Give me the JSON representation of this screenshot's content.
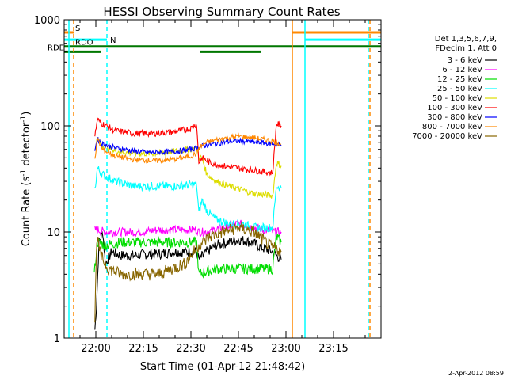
{
  "chart_data": {
    "type": "line",
    "title": "HESSI Observing Summary Count Rates",
    "xlabel": "Start Time (01-Apr-12 21:48:42)",
    "ylabel_main": "Count Rate (s",
    "ylabel_sup1": "-1",
    "ylabel_mid": " detector",
    "ylabel_sup2": "-1",
    "ylabel_end": ")",
    "yscale": "log",
    "xlim_minutes": [
      -10,
      90
    ],
    "ylim": [
      1,
      1000
    ],
    "x_ticks": [
      {
        "minute": 0,
        "label": "22:00"
      },
      {
        "minute": 15,
        "label": "22:15"
      },
      {
        "minute": 30,
        "label": "22:30"
      },
      {
        "minute": 45,
        "label": "22:45"
      },
      {
        "minute": 60,
        "label": "23:00"
      },
      {
        "minute": 75,
        "label": "23:15"
      }
    ],
    "y_ticks": [
      {
        "value": 1,
        "label": "1"
      },
      {
        "value": 10,
        "label": "10"
      },
      {
        "value": 100,
        "label": "100"
      },
      {
        "value": 1000,
        "label": "1000"
      }
    ],
    "legend_header": [
      "Det 1,3,5,6,7,9,",
      "FDecim 1, Att 0"
    ],
    "series": [
      {
        "name": "3 - 6 keV",
        "color": "#000000",
        "x": [
          -0.3,
          0.2,
          1.0,
          2.2,
          3.0,
          5.0,
          8,
          12,
          16,
          20,
          25,
          31.8,
          32.5,
          35,
          38,
          42,
          45,
          49,
          53,
          55.8,
          57,
          58.5
        ],
        "y": [
          1.2,
          2.0,
          8,
          10,
          5,
          6.5,
          6,
          6,
          6.2,
          6.2,
          6.5,
          6.5,
          5.5,
          6.5,
          7.5,
          8,
          8.5,
          8,
          7,
          6.5,
          6,
          5.5
        ]
      },
      {
        "name": "6 - 12 keV",
        "color": "#ff00ff",
        "x": [
          -0.3,
          0.5,
          3,
          8,
          14,
          20,
          26,
          31.8,
          32.5,
          35,
          40,
          45,
          50,
          55.8,
          57,
          58.5
        ],
        "y": [
          10.5,
          10.5,
          10,
          10,
          10,
          10.5,
          10.5,
          10.5,
          10,
          10,
          11,
          12,
          11,
          10,
          10,
          10
        ]
      },
      {
        "name": "12 - 25 keV",
        "color": "#00dd00",
        "x": [
          -0.5,
          0.5,
          3,
          8,
          14,
          20,
          26,
          31.8,
          32.5,
          38,
          44,
          50,
          55.8,
          57,
          58.5
        ],
        "y": [
          4,
          8,
          7.5,
          8,
          8,
          8,
          8,
          8,
          4,
          4.5,
          4.5,
          4.5,
          4.5,
          9,
          8
        ]
      },
      {
        "name": "25 - 50 keV",
        "color": "#00ffff",
        "x": [
          -0.3,
          0.5,
          2,
          6,
          12,
          18,
          24,
          31.8,
          32.5,
          33.5,
          35,
          38,
          42,
          46,
          50,
          55.8,
          57,
          58.5
        ],
        "y": [
          25,
          40,
          35,
          30,
          27,
          27,
          27,
          28,
          15,
          20,
          16,
          13,
          12,
          12,
          11,
          11,
          27,
          26
        ]
      },
      {
        "name": "50 - 100 keV",
        "color": "#dddd00",
        "x": [
          -0.3,
          0.5,
          2,
          6,
          12,
          18,
          24,
          30,
          31.8,
          32.5,
          33.5,
          35,
          38,
          42,
          46,
          50,
          55.8,
          57,
          58.5
        ],
        "y": [
          60,
          75,
          65,
          58,
          55,
          55,
          57,
          60,
          62,
          50,
          50,
          35,
          30,
          27,
          25,
          23,
          22,
          45,
          42
        ]
      },
      {
        "name": "100 - 300 keV",
        "color": "#ff0000",
        "x": [
          -0.3,
          0.5,
          2,
          6,
          12,
          18,
          24,
          30,
          31.8,
          32.5,
          33.5,
          36,
          40,
          45,
          50,
          55.8,
          57,
          58.5
        ],
        "y": [
          80,
          115,
          105,
          90,
          85,
          85,
          87,
          95,
          105,
          45,
          50,
          45,
          42,
          40,
          38,
          36,
          105,
          100
        ]
      },
      {
        "name": "300 - 800 keV",
        "color": "#0000ff",
        "x": [
          -0.3,
          0.5,
          2,
          6,
          12,
          18,
          24,
          30,
          31.8,
          32.5,
          35,
          40,
          45,
          50,
          55.8,
          57,
          58.5
        ],
        "y": [
          60,
          75,
          68,
          62,
          58,
          56,
          57,
          60,
          62,
          63,
          66,
          70,
          72,
          70,
          68,
          68,
          65
        ]
      },
      {
        "name": "800 - 7000 keV",
        "color": "#ff8800",
        "x": [
          -0.3,
          0.5,
          2,
          6,
          12,
          18,
          24,
          30,
          31.8,
          32.5,
          35,
          40,
          45,
          50,
          55.8,
          57,
          58.5
        ],
        "y": [
          50,
          75,
          60,
          52,
          48,
          47,
          48,
          52,
          55,
          62,
          70,
          76,
          80,
          77,
          72,
          70,
          67
        ]
      },
      {
        "name": "7000 - 20000 keV",
        "color": "#886600",
        "x": [
          -0.3,
          0.3,
          1.5,
          4,
          8,
          12,
          16,
          20,
          24,
          28,
          31.8,
          32.5,
          36,
          40,
          45,
          50,
          55.8,
          57,
          58.5
        ],
        "y": [
          1.5,
          9,
          6,
          4.5,
          4,
          4,
          4,
          4,
          4.5,
          5,
          7,
          7.5,
          9,
          10,
          11,
          10,
          7,
          7,
          6.5
        ]
      }
    ],
    "vertical_markers": [
      {
        "minute": -8.5,
        "color": "#00ffff",
        "style": "solid"
      },
      {
        "minute": -7,
        "color": "#ff8800",
        "style": "dashed"
      },
      {
        "minute": 3.5,
        "color": "#00ffff",
        "style": "dashed"
      },
      {
        "minute": 62,
        "color": "#ff8800",
        "style": "solid"
      },
      {
        "minute": 66,
        "color": "#00ffff",
        "style": "solid"
      },
      {
        "minute": 86,
        "color": "#00ffff",
        "style": "dashed"
      },
      {
        "minute": 86.5,
        "color": "#ff8800",
        "style": "dashed"
      }
    ],
    "flag_bars": [
      {
        "label": "S",
        "color": "#ff8800",
        "segments": [
          [
            -10,
            -7
          ],
          [
            62,
            90
          ]
        ],
        "value": 760
      },
      {
        "label": "N",
        "color": "#00ffff",
        "segments": [
          [
            -10,
            3.5
          ],
          [
            66,
            90
          ]
        ],
        "value": 650
      },
      {
        "label": "RDO",
        "color": "#007700",
        "segments": [
          [
            -10,
            90
          ]
        ],
        "value": 560
      },
      {
        "label": "RDE",
        "color": "#007700",
        "segments": [
          [
            -10,
            1.5
          ],
          [
            33,
            52
          ]
        ],
        "value": 500
      }
    ],
    "timestamp": "2-Apr-2012 08:59"
  }
}
